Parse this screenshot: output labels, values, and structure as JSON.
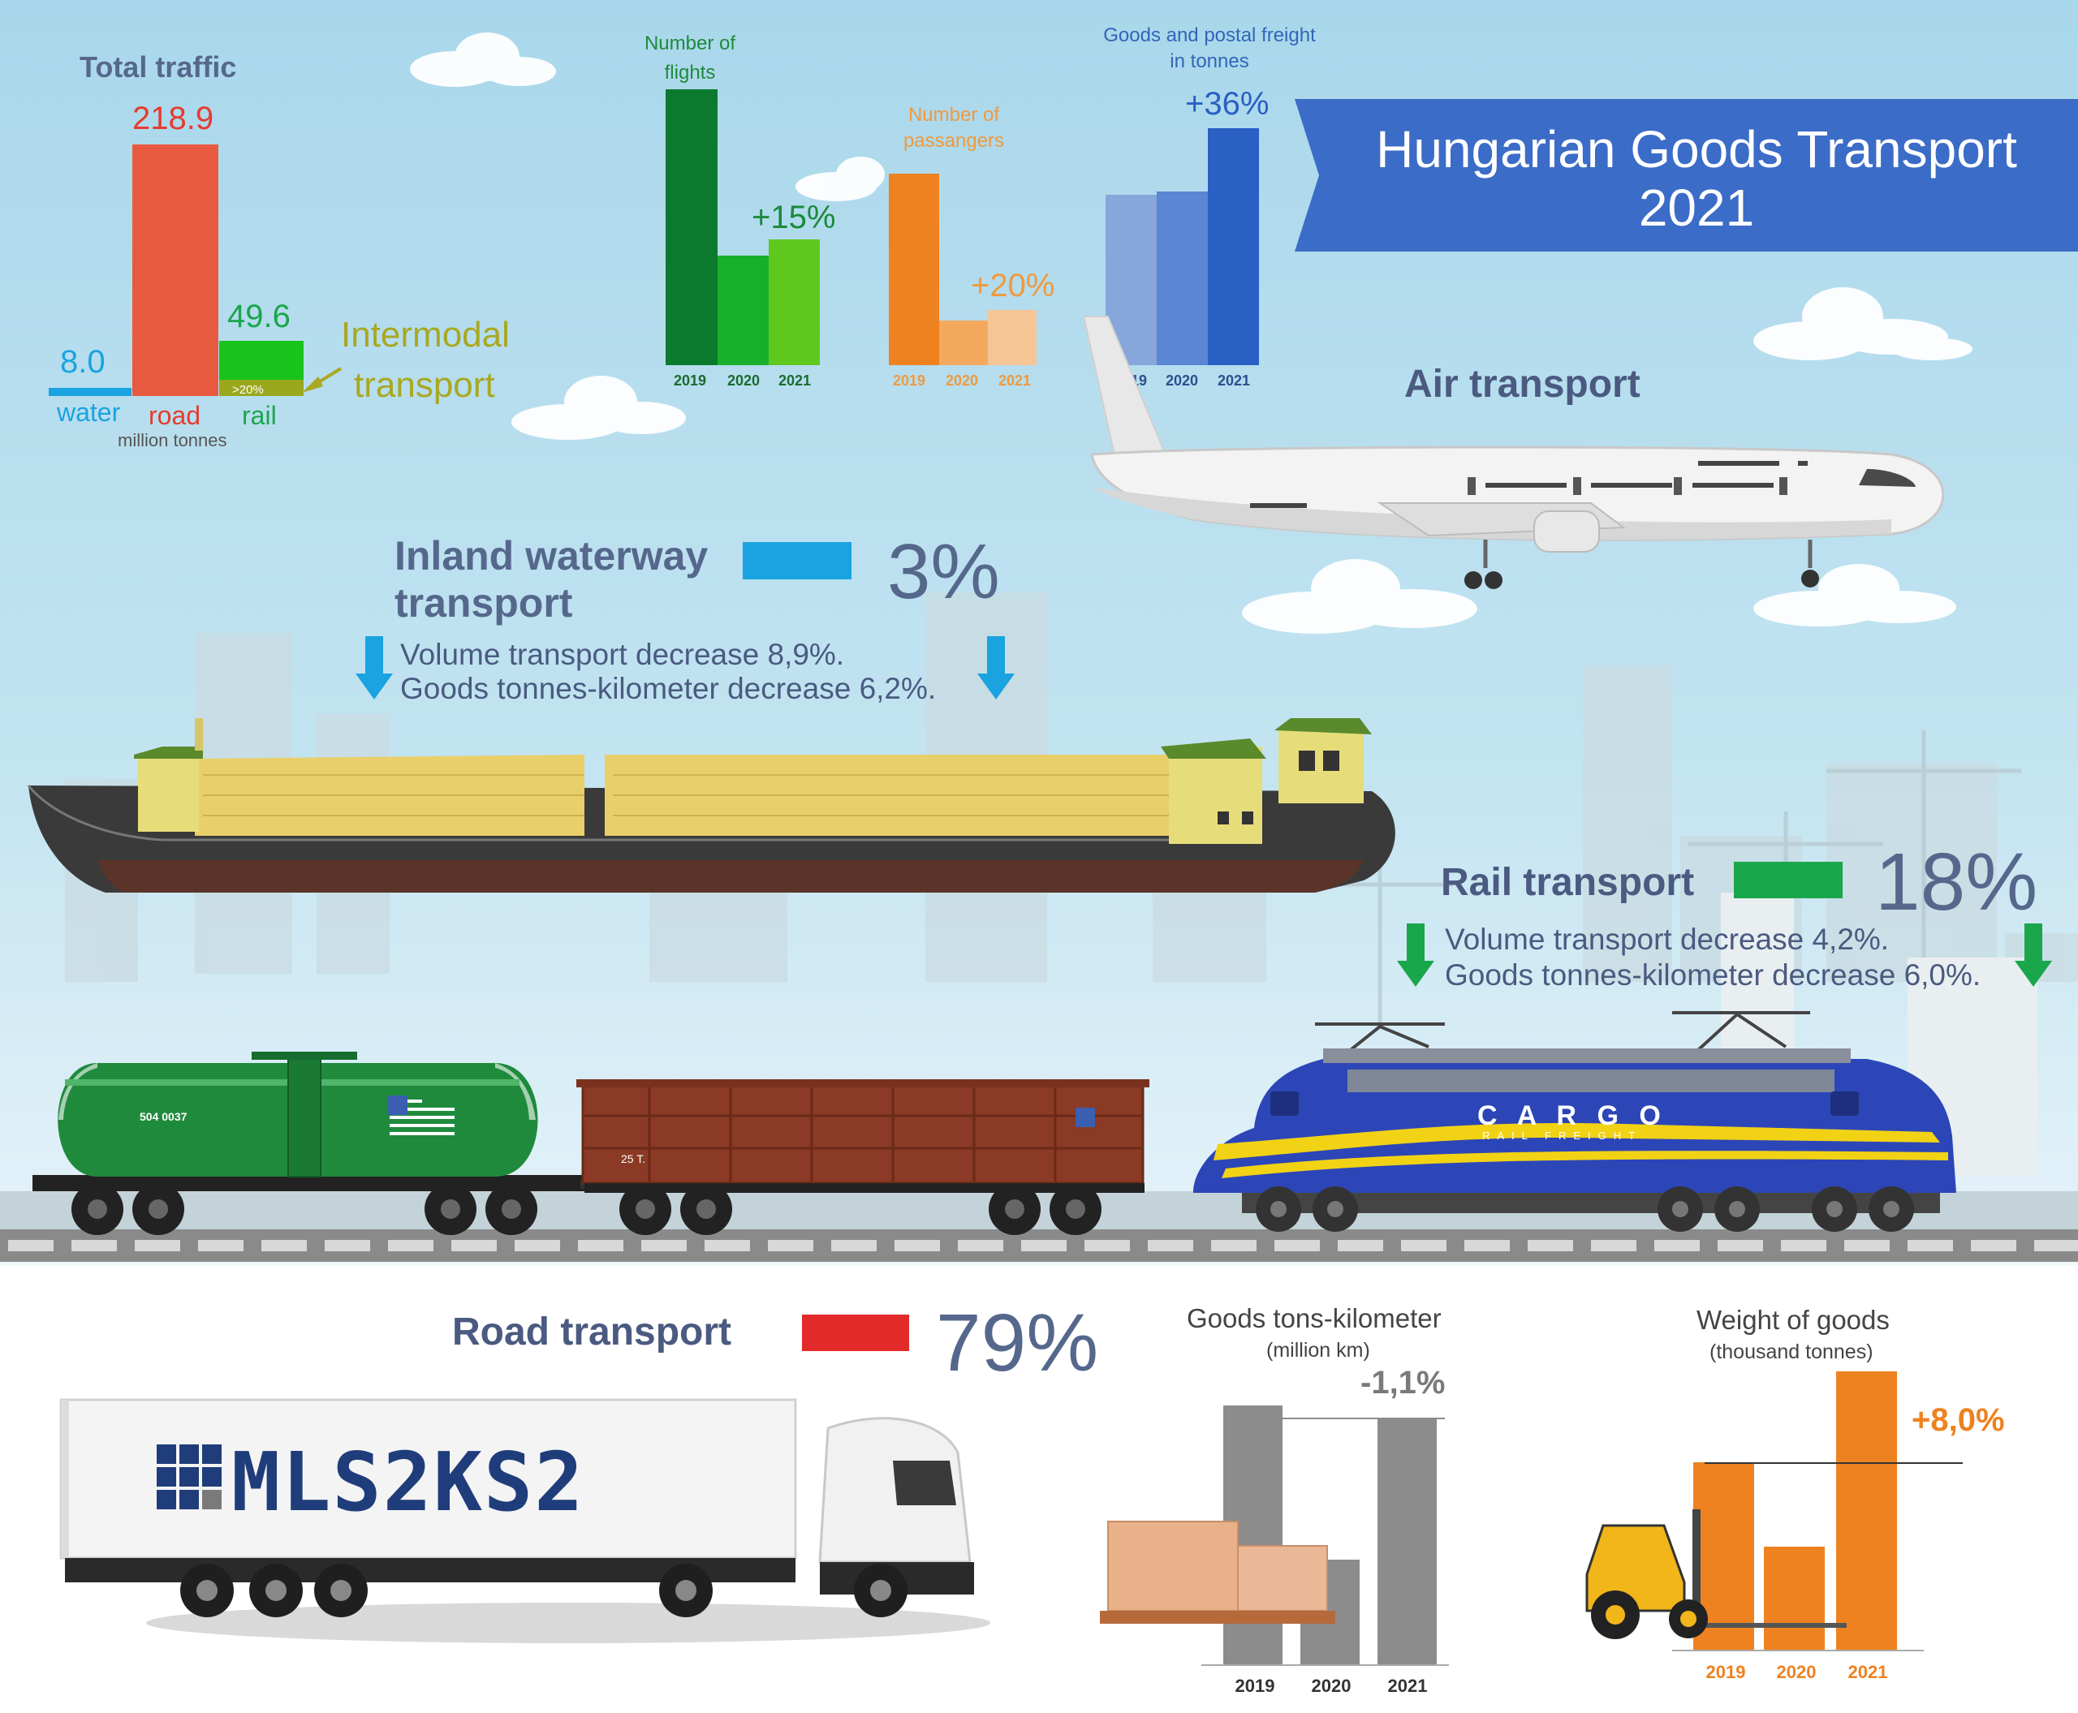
{
  "title": {
    "line1": "Hungarian Goods Transport",
    "line2": "2021"
  },
  "colors": {
    "water": "#1aa3e0",
    "road": "#e63b2e",
    "rail": "#1aa64a",
    "navy": "#4a5a80",
    "banner": "#3b6cc7",
    "orange": "#ee8220",
    "gray": "#8c8c8c"
  },
  "total_traffic": {
    "title": "Total traffic",
    "unit": "million tonnes",
    "intermodal_label": [
      "Intermodal",
      "transport"
    ],
    "intermodal_note": ">20%",
    "labels": [
      "water",
      "road",
      "rail"
    ],
    "values_text": [
      "8.0",
      "218.9",
      "49.6"
    ]
  },
  "air": {
    "title": "Air transport",
    "flights": {
      "title": [
        "Number of",
        "flights"
      ],
      "change": "+15%"
    },
    "passengers": {
      "title": [
        "Number of",
        "passangers"
      ],
      "change": "+20%"
    },
    "freight": {
      "title": [
        "Goods and postal freight",
        "in tonnes"
      ],
      "change": "+36%"
    }
  },
  "waterway": {
    "title": [
      "Inland waterway",
      "transport"
    ],
    "share": "3%",
    "lines": [
      "Volume transport decrease 8,9%.",
      "Goods tonnes-kilometer decrease  6,2%."
    ]
  },
  "rail": {
    "title": "Rail transport",
    "share": "18%",
    "lines": [
      "Volume transport decrease 4,2%.",
      "Goods tonnes-kilometer decrease 6,0%."
    ],
    "tank_code": "504 0037",
    "wagon_code": "25 T.",
    "loco_brand": "C A R G O",
    "loco_sub": "RAIL FREIGHT"
  },
  "road": {
    "title": "Road transport",
    "share": "79%",
    "truck_brand": "MLS2KS2"
  },
  "tonskm": {
    "title": "Goods tons-kilometer",
    "subtitle": "(million km)",
    "change": "-1,1%"
  },
  "weight": {
    "title": "Weight of goods",
    "subtitle": "(thousand tonnes)",
    "change": "+8,0%"
  },
  "chart_data": [
    {
      "type": "bar",
      "title": "Total traffic",
      "categories": [
        "water",
        "road",
        "rail"
      ],
      "values": [
        8.0,
        218.9,
        49.6
      ],
      "ylabel": "million tonnes"
    },
    {
      "type": "bar",
      "title": "Number of flights",
      "categories": [
        "2019",
        "2020",
        "2021"
      ],
      "values": [
        100,
        39,
        45
      ]
    },
    {
      "type": "bar",
      "title": "Number of passangers",
      "categories": [
        "2019",
        "2020",
        "2021"
      ],
      "values": [
        100,
        23,
        28
      ]
    },
    {
      "type": "bar",
      "title": "Goods and postal freight in tonnes",
      "categories": [
        "2019",
        "2020",
        "2021"
      ],
      "values": [
        71,
        72,
        98
      ]
    },
    {
      "type": "bar",
      "title": "Goods tons-kilometer",
      "categories": [
        "2019",
        "2020",
        "2021"
      ],
      "values": [
        100,
        40,
        98
      ]
    },
    {
      "type": "bar",
      "title": "Weight of goods",
      "categories": [
        "2019",
        "2020",
        "2021"
      ],
      "values": [
        74,
        42,
        100
      ]
    }
  ]
}
